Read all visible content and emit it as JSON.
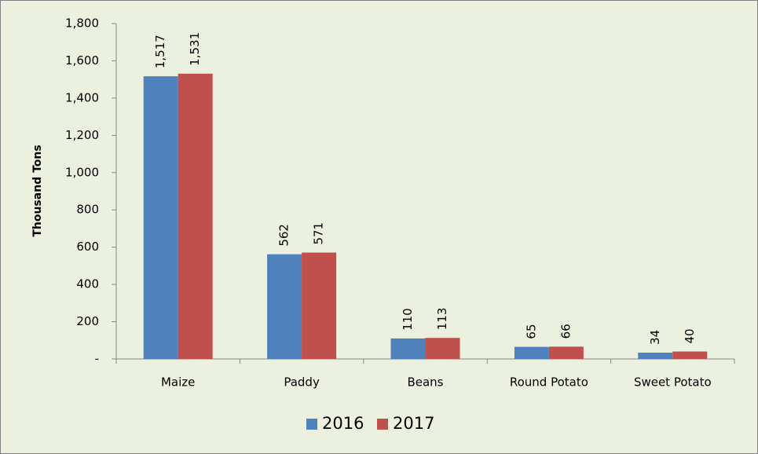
{
  "chart_data": {
    "type": "bar",
    "y_label": "Thousand Tons",
    "categories": [
      "Maize",
      "Paddy",
      "Beans",
      "Round Potato",
      "Sweet Potato"
    ],
    "series": [
      {
        "name": "2016",
        "color": "#4f81bd",
        "values": [
          1517,
          562,
          110,
          65,
          34
        ],
        "value_labels": [
          "1,517",
          "562",
          "110",
          "65",
          "34"
        ]
      },
      {
        "name": "2017",
        "color": "#c0504d",
        "values": [
          1531,
          571,
          113,
          66,
          40
        ],
        "value_labels": [
          "1,531",
          "571",
          "113",
          "66",
          "40"
        ]
      }
    ],
    "ylim": [
      0,
      1800
    ],
    "yticks": [
      {
        "value": 0,
        "label": "-"
      },
      200,
      400,
      600,
      800,
      {
        "value": 1000,
        "label": "1,000"
      },
      {
        "value": 1200,
        "label": "1,200"
      },
      {
        "value": 1400,
        "label": "1,400"
      },
      {
        "value": 1600,
        "label": "1,600"
      },
      {
        "value": 1800,
        "label": "1,800"
      }
    ],
    "grid": false,
    "legend": "bottom"
  }
}
